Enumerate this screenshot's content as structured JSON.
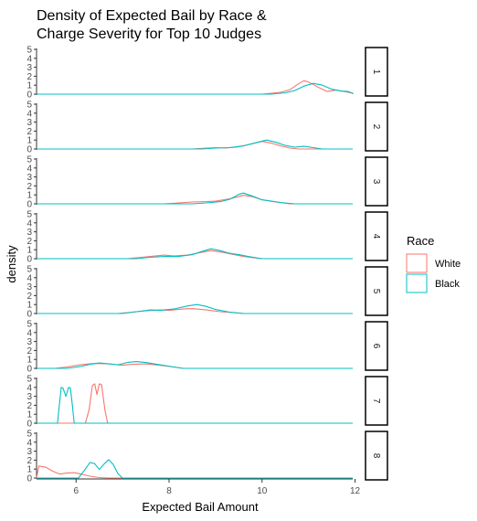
{
  "chart_data": {
    "type": "area",
    "title_lines": [
      "Density of Expected Bail by Race &",
      "Charge Severity for Top 10 Judges"
    ],
    "xlabel": "Expected Bail Amount",
    "ylabel": "density",
    "xlim": [
      5.15,
      11.95
    ],
    "ylim": [
      0,
      5
    ],
    "x_ticks": [
      6,
      8,
      10,
      12
    ],
    "x_tick_labels": [
      "6",
      "8",
      "10",
      "12"
    ],
    "y_ticks": [
      0,
      1,
      2,
      3,
      4,
      5
    ],
    "y_tick_labels": [
      "0",
      "1",
      "2",
      "3",
      "4",
      "5"
    ],
    "grid": false,
    "legend": {
      "title": "Race",
      "position": "right",
      "entries": [
        {
          "name": "White",
          "color": "#F8766D"
        },
        {
          "name": "Black",
          "color": "#00BFC4"
        }
      ]
    },
    "panels": [
      {
        "label": "1",
        "series": [
          {
            "name": "White",
            "points": [
              [
                10.0,
                0
              ],
              [
                10.2,
                0.1
              ],
              [
                10.4,
                0.2
              ],
              [
                10.6,
                0.5
              ],
              [
                10.8,
                1.2
              ],
              [
                10.9,
                1.5
              ],
              [
                11.0,
                1.35
              ],
              [
                11.2,
                0.8
              ],
              [
                11.4,
                0.3
              ],
              [
                11.6,
                0.45
              ],
              [
                11.8,
                0.25
              ],
              [
                11.95,
                0.1
              ]
            ]
          },
          {
            "name": "Black",
            "points": [
              [
                10.2,
                0
              ],
              [
                10.5,
                0.15
              ],
              [
                10.7,
                0.4
              ],
              [
                10.9,
                0.9
              ],
              [
                11.1,
                1.2
              ],
              [
                11.3,
                1.0
              ],
              [
                11.5,
                0.55
              ],
              [
                11.7,
                0.35
              ],
              [
                11.85,
                0.3
              ],
              [
                11.95,
                0.1
              ]
            ]
          }
        ]
      },
      {
        "label": "2",
        "series": [
          {
            "name": "White",
            "points": [
              [
                8.5,
                0
              ],
              [
                8.8,
                0.1
              ],
              [
                9.0,
                0.15
              ],
              [
                9.2,
                0.1
              ],
              [
                9.5,
                0.25
              ],
              [
                9.8,
                0.6
              ],
              [
                10.0,
                0.85
              ],
              [
                10.2,
                0.65
              ],
              [
                10.4,
                0.35
              ],
              [
                10.6,
                0.1
              ],
              [
                10.8,
                0
              ]
            ]
          },
          {
            "name": "Black",
            "points": [
              [
                8.7,
                0
              ],
              [
                9.0,
                0.1
              ],
              [
                9.3,
                0.15
              ],
              [
                9.6,
                0.35
              ],
              [
                9.9,
                0.75
              ],
              [
                10.1,
                1.0
              ],
              [
                10.3,
                0.75
              ],
              [
                10.5,
                0.4
              ],
              [
                10.7,
                0.2
              ],
              [
                10.9,
                0.3
              ],
              [
                11.1,
                0.15
              ],
              [
                11.3,
                0
              ]
            ]
          }
        ]
      },
      {
        "label": "3",
        "series": [
          {
            "name": "White",
            "points": [
              [
                7.9,
                0
              ],
              [
                8.2,
                0.1
              ],
              [
                8.5,
                0.2
              ],
              [
                8.8,
                0.25
              ],
              [
                9.0,
                0.3
              ],
              [
                9.3,
                0.55
              ],
              [
                9.6,
                0.95
              ],
              [
                9.8,
                0.8
              ],
              [
                10.0,
                0.45
              ],
              [
                10.3,
                0.2
              ],
              [
                10.6,
                0
              ]
            ]
          },
          {
            "name": "Black",
            "points": [
              [
                8.5,
                0
              ],
              [
                8.8,
                0.1
              ],
              [
                9.1,
                0.25
              ],
              [
                9.3,
                0.5
              ],
              [
                9.5,
                1.05
              ],
              [
                9.6,
                1.2
              ],
              [
                9.8,
                0.85
              ],
              [
                10.0,
                0.45
              ],
              [
                10.2,
                0.3
              ],
              [
                10.4,
                0.15
              ],
              [
                10.7,
                0
              ]
            ]
          }
        ]
      },
      {
        "label": "4",
        "series": [
          {
            "name": "White",
            "points": [
              [
                7.1,
                0
              ],
              [
                7.4,
                0.15
              ],
              [
                7.7,
                0.3
              ],
              [
                7.9,
                0.4
              ],
              [
                8.1,
                0.3
              ],
              [
                8.4,
                0.4
              ],
              [
                8.7,
                0.7
              ],
              [
                8.9,
                0.9
              ],
              [
                9.1,
                0.75
              ],
              [
                9.4,
                0.45
              ],
              [
                9.6,
                0.25
              ],
              [
                9.9,
                0.05
              ],
              [
                10.0,
                0
              ]
            ]
          },
          {
            "name": "Black",
            "points": [
              [
                7.3,
                0
              ],
              [
                7.6,
                0.15
              ],
              [
                7.9,
                0.25
              ],
              [
                8.2,
                0.25
              ],
              [
                8.5,
                0.45
              ],
              [
                8.7,
                0.8
              ],
              [
                8.9,
                1.1
              ],
              [
                9.1,
                0.9
              ],
              [
                9.3,
                0.6
              ],
              [
                9.5,
                0.45
              ],
              [
                9.7,
                0.25
              ],
              [
                10.0,
                0
              ]
            ]
          }
        ]
      },
      {
        "label": "5",
        "series": [
          {
            "name": "White",
            "points": [
              [
                6.9,
                0
              ],
              [
                7.2,
                0.15
              ],
              [
                7.5,
                0.3
              ],
              [
                7.8,
                0.4
              ],
              [
                8.0,
                0.35
              ],
              [
                8.3,
                0.5
              ],
              [
                8.5,
                0.55
              ],
              [
                8.8,
                0.4
              ],
              [
                9.1,
                0.2
              ],
              [
                9.4,
                0.1
              ],
              [
                9.6,
                0
              ]
            ]
          },
          {
            "name": "Black",
            "points": [
              [
                7.0,
                0
              ],
              [
                7.3,
                0.2
              ],
              [
                7.6,
                0.4
              ],
              [
                7.8,
                0.35
              ],
              [
                8.1,
                0.5
              ],
              [
                8.4,
                0.85
              ],
              [
                8.6,
                1.0
              ],
              [
                8.8,
                0.8
              ],
              [
                9.0,
                0.45
              ],
              [
                9.3,
                0.15
              ],
              [
                9.6,
                0
              ]
            ]
          }
        ]
      },
      {
        "label": "6",
        "series": [
          {
            "name": "White",
            "points": [
              [
                5.55,
                0
              ],
              [
                5.8,
                0.15
              ],
              [
                6.1,
                0.4
              ],
              [
                6.4,
                0.55
              ],
              [
                6.7,
                0.5
              ],
              [
                7.0,
                0.35
              ],
              [
                7.2,
                0.45
              ],
              [
                7.5,
                0.5
              ],
              [
                7.8,
                0.35
              ],
              [
                8.1,
                0.15
              ],
              [
                8.3,
                0
              ]
            ]
          },
          {
            "name": "Black",
            "points": [
              [
                5.8,
                0
              ],
              [
                6.1,
                0.2
              ],
              [
                6.3,
                0.45
              ],
              [
                6.5,
                0.6
              ],
              [
                6.7,
                0.5
              ],
              [
                6.9,
                0.4
              ],
              [
                7.1,
                0.65
              ],
              [
                7.3,
                0.75
              ],
              [
                7.5,
                0.65
              ],
              [
                7.8,
                0.4
              ],
              [
                8.1,
                0.15
              ],
              [
                8.3,
                0
              ]
            ]
          }
        ]
      },
      {
        "label": "7",
        "series": [
          {
            "name": "White",
            "points": [
              [
                6.2,
                0
              ],
              [
                6.28,
                1.5
              ],
              [
                6.35,
                4.2
              ],
              [
                6.4,
                4.4
              ],
              [
                6.45,
                3.2
              ],
              [
                6.5,
                4.4
              ],
              [
                6.55,
                4.3
              ],
              [
                6.62,
                1.5
              ],
              [
                6.68,
                0
              ]
            ]
          },
          {
            "name": "Black",
            "points": [
              [
                5.6,
                0
              ],
              [
                5.64,
                2.0
              ],
              [
                5.68,
                4.0
              ],
              [
                5.72,
                3.9
              ],
              [
                5.78,
                3.0
              ],
              [
                5.84,
                4.0
              ],
              [
                5.88,
                3.9
              ],
              [
                5.92,
                2.0
              ],
              [
                5.96,
                0
              ]
            ]
          }
        ]
      },
      {
        "label": "8",
        "series": [
          {
            "name": "White",
            "points": [
              [
                5.2,
                1.35
              ],
              [
                5.35,
                1.2
              ],
              [
                5.5,
                0.75
              ],
              [
                5.65,
                0.45
              ],
              [
                5.8,
                0.55
              ],
              [
                5.95,
                0.6
              ],
              [
                6.1,
                0.45
              ],
              [
                6.3,
                0.2
              ],
              [
                6.5,
                0.05
              ],
              [
                6.7,
                0
              ]
            ]
          },
          {
            "name": "Black",
            "points": [
              [
                6.05,
                0
              ],
              [
                6.2,
                1.0
              ],
              [
                6.3,
                1.75
              ],
              [
                6.4,
                1.6
              ],
              [
                6.5,
                0.95
              ],
              [
                6.6,
                1.55
              ],
              [
                6.7,
                2.05
              ],
              [
                6.8,
                1.5
              ],
              [
                6.9,
                0.5
              ],
              [
                7.0,
                0
              ]
            ]
          }
        ]
      }
    ]
  }
}
